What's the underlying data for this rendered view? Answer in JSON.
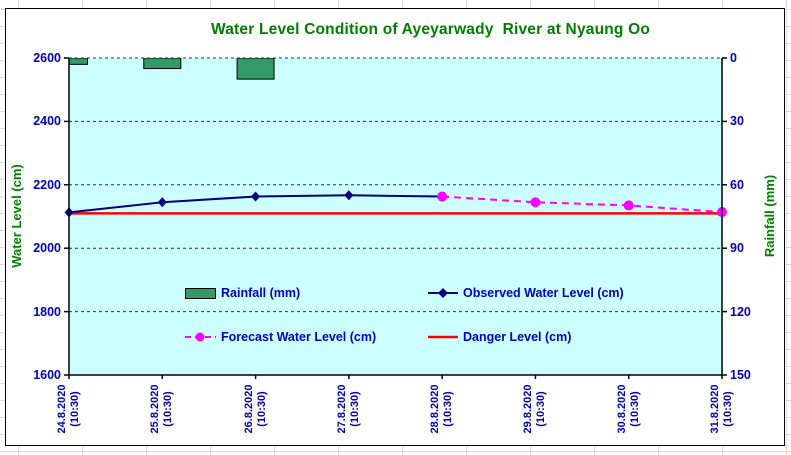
{
  "title": {
    "text": "Water Level Condition of Ayeyarwady  River at Nyaung Oo"
  },
  "axes": {
    "left": {
      "title": "Water Level (cm)",
      "ticks": [
        "2600",
        "2400",
        "2200",
        "2000",
        "1800",
        "1600"
      ]
    },
    "right": {
      "title": "Rainfall (mm)",
      "ticks": [
        "0",
        "30",
        "60",
        "90",
        "120",
        "150"
      ]
    },
    "x": {
      "labels": [
        {
          "line1": "24.8.2020",
          "line2": "(10:30)"
        },
        {
          "line1": "25.8.2020",
          "line2": "(10:30)"
        },
        {
          "line1": "26.8.2020",
          "line2": "(10:30)"
        },
        {
          "line1": "27.8.2020",
          "line2": "(10:30)"
        },
        {
          "line1": "28.8.2020",
          "line2": "(10:30)"
        },
        {
          "line1": "29.8.2020",
          "line2": "(10:30)"
        },
        {
          "line1": "30.8.2020",
          "line2": "(10:30)"
        },
        {
          "line1": "31.8.2020",
          "line2": "(10:30)"
        }
      ]
    }
  },
  "legend": {
    "rainfall": "Rainfall (mm)",
    "observed": "Observed Water Level (cm)",
    "forecast": "Forecast Water Level (cm)",
    "danger": "Danger Level (cm)"
  },
  "colors": {
    "title": "#008000",
    "axis_title": "#008000",
    "tick_label": "#0000CC",
    "legend_label": "#0000CC",
    "plot_bg": "#CCFFFF",
    "rainfall_bar": "#339966",
    "bar_border": "#000000",
    "observed": "#000080",
    "forecast": "#FF00FF",
    "danger": "#FF0000",
    "gridline": "#303030",
    "axis_line": "#000000",
    "sheet_grid": "#DCDCDC"
  },
  "chart_data": {
    "type": "combo bar+line",
    "title": "Water Level Condition of Ayeyarwady  River at Nyaung Oo",
    "categories": [
      "24.8.2020 (10:30)",
      "25.8.2020 (10:30)",
      "26.8.2020 (10:30)",
      "27.8.2020 (10:30)",
      "28.8.2020 (10:30)",
      "29.8.2020 (10:30)",
      "30.8.2020 (10:30)",
      "31.8.2020 (10:30)"
    ],
    "left_axis": {
      "label": "Water Level (cm)",
      "range": [
        1600,
        2600
      ],
      "tick_step": 200
    },
    "right_axis": {
      "label": "Rainfall (mm)",
      "range": [
        0,
        150
      ],
      "tick_step": 30,
      "inverted": true
    },
    "grid": "horizontal dashed gridlines, plot background light cyan",
    "legend_position": "inside plot area, two rows",
    "series": [
      {
        "name": "Rainfall (mm)",
        "type": "bar",
        "axis": "right",
        "values": [
          3,
          5,
          10,
          0,
          0,
          0,
          0,
          0
        ]
      },
      {
        "name": "Observed Water Level (cm)",
        "type": "line",
        "axis": "left",
        "marker": "diamond",
        "values": [
          2113,
          2145,
          2163,
          2167,
          2163,
          null,
          null,
          null
        ]
      },
      {
        "name": "Forecast Water Level (cm)",
        "type": "line",
        "axis": "left",
        "marker": "circle",
        "dashed": true,
        "values": [
          null,
          null,
          null,
          null,
          2163,
          2145,
          2135,
          2114
        ]
      },
      {
        "name": "Danger Level (cm)",
        "type": "line",
        "axis": "left",
        "values": [
          2110,
          2110,
          2110,
          2110,
          2110,
          2110,
          2110,
          2110
        ]
      }
    ]
  }
}
